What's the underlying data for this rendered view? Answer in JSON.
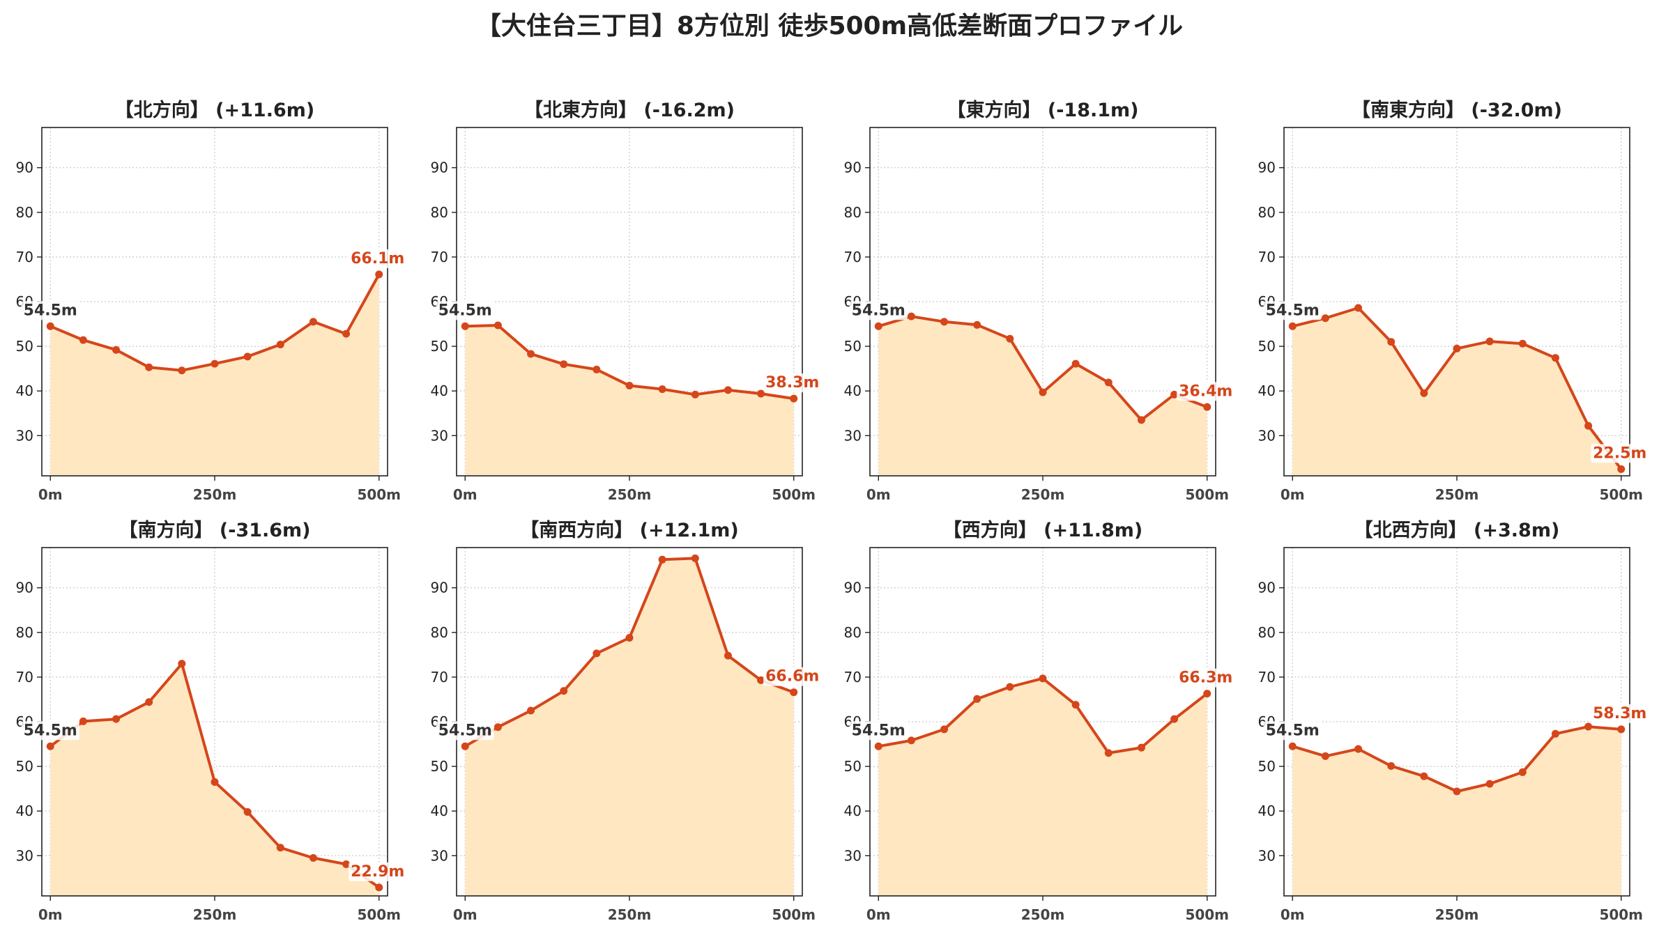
{
  "title": "【大住台三丁目】8方位別 徒歩500m高低差断面プロファイル",
  "colors": {
    "line": "#d5461a",
    "fill": "#ffe7c2",
    "end_label": "#d5461a",
    "start_label": "#333333",
    "grid": "#c8c8c8"
  },
  "chart_data": [
    {
      "type": "area",
      "title": "【北方向】 (+11.6m)",
      "x": [
        0,
        50,
        100,
        150,
        200,
        250,
        300,
        350,
        400,
        450,
        500
      ],
      "y": [
        54.5,
        51.4,
        49.2,
        45.3,
        44.6,
        46.1,
        47.7,
        50.4,
        55.5,
        52.8,
        66.1
      ],
      "start_label": "54.5m",
      "end_label": "66.1m",
      "xlim": [
        -13,
        513
      ],
      "ylim": [
        21,
        99
      ],
      "xticks": [
        0,
        250,
        500
      ],
      "xtick_labels": [
        "0m",
        "250m",
        "500m"
      ],
      "yticks": [
        30,
        40,
        50,
        60,
        70,
        80,
        90
      ],
      "ytick_labels": [
        "30",
        "40",
        "50",
        "60",
        "70",
        "80",
        "90"
      ],
      "grid": true
    },
    {
      "type": "area",
      "title": "【北東方向】 (-16.2m)",
      "x": [
        0,
        50,
        100,
        150,
        200,
        250,
        300,
        350,
        400,
        450,
        500
      ],
      "y": [
        54.5,
        54.7,
        48.3,
        46.0,
        44.8,
        41.2,
        40.4,
        39.2,
        40.2,
        39.4,
        38.3
      ],
      "start_label": "54.5m",
      "end_label": "38.3m",
      "xlim": [
        -13,
        513
      ],
      "ylim": [
        21,
        99
      ],
      "xticks": [
        0,
        250,
        500
      ],
      "xtick_labels": [
        "0m",
        "250m",
        "500m"
      ],
      "yticks": [
        30,
        40,
        50,
        60,
        70,
        80,
        90
      ],
      "ytick_labels": [
        "30",
        "40",
        "50",
        "60",
        "70",
        "80",
        "90"
      ],
      "grid": true
    },
    {
      "type": "area",
      "title": "【東方向】 (-18.1m)",
      "x": [
        0,
        50,
        100,
        150,
        200,
        250,
        300,
        350,
        400,
        450,
        500
      ],
      "y": [
        54.5,
        56.7,
        55.5,
        54.8,
        51.7,
        39.7,
        46.1,
        41.9,
        33.5,
        39.2,
        36.4
      ],
      "start_label": "54.5m",
      "end_label": "36.4m",
      "xlim": [
        -13,
        513
      ],
      "ylim": [
        21,
        99
      ],
      "xticks": [
        0,
        250,
        500
      ],
      "xtick_labels": [
        "0m",
        "250m",
        "500m"
      ],
      "yticks": [
        30,
        40,
        50,
        60,
        70,
        80,
        90
      ],
      "ytick_labels": [
        "30",
        "40",
        "50",
        "60",
        "70",
        "80",
        "90"
      ],
      "grid": true
    },
    {
      "type": "area",
      "title": "【南東方向】 (-32.0m)",
      "x": [
        0,
        50,
        100,
        150,
        200,
        250,
        300,
        350,
        400,
        450,
        500
      ],
      "y": [
        54.5,
        56.3,
        58.6,
        51.0,
        39.5,
        49.5,
        51.1,
        50.6,
        47.4,
        32.2,
        22.5
      ],
      "start_label": "54.5m",
      "end_label": "22.5m",
      "xlim": [
        -13,
        513
      ],
      "ylim": [
        21,
        99
      ],
      "xticks": [
        0,
        250,
        500
      ],
      "xtick_labels": [
        "0m",
        "250m",
        "500m"
      ],
      "yticks": [
        30,
        40,
        50,
        60,
        70,
        80,
        90
      ],
      "ytick_labels": [
        "30",
        "40",
        "50",
        "60",
        "70",
        "80",
        "90"
      ],
      "grid": true
    },
    {
      "type": "area",
      "title": "【南方向】 (-31.6m)",
      "x": [
        0,
        50,
        100,
        150,
        200,
        250,
        300,
        350,
        400,
        450,
        500
      ],
      "y": [
        54.5,
        60.1,
        60.6,
        64.4,
        73.0,
        46.5,
        39.8,
        31.8,
        29.5,
        28.1,
        22.9
      ],
      "start_label": "54.5m",
      "end_label": "22.9m",
      "xlim": [
        -13,
        513
      ],
      "ylim": [
        21,
        99
      ],
      "xticks": [
        0,
        250,
        500
      ],
      "xtick_labels": [
        "0m",
        "250m",
        "500m"
      ],
      "yticks": [
        30,
        40,
        50,
        60,
        70,
        80,
        90
      ],
      "ytick_labels": [
        "30",
        "40",
        "50",
        "60",
        "70",
        "80",
        "90"
      ],
      "grid": true
    },
    {
      "type": "area",
      "title": "【南西方向】 (+12.1m)",
      "x": [
        0,
        50,
        100,
        150,
        200,
        250,
        300,
        350,
        400,
        450,
        500
      ],
      "y": [
        54.5,
        58.8,
        62.5,
        66.9,
        75.3,
        78.8,
        96.3,
        96.6,
        74.8,
        69.3,
        66.6
      ],
      "start_label": "54.5m",
      "end_label": "66.6m",
      "xlim": [
        -13,
        513
      ],
      "ylim": [
        21,
        99
      ],
      "xticks": [
        0,
        250,
        500
      ],
      "xtick_labels": [
        "0m",
        "250m",
        "500m"
      ],
      "yticks": [
        30,
        40,
        50,
        60,
        70,
        80,
        90
      ],
      "ytick_labels": [
        "30",
        "40",
        "50",
        "60",
        "70",
        "80",
        "90"
      ],
      "grid": true
    },
    {
      "type": "area",
      "title": "【西方向】 (+11.8m)",
      "x": [
        0,
        50,
        100,
        150,
        200,
        250,
        300,
        350,
        400,
        450,
        500
      ],
      "y": [
        54.5,
        55.8,
        58.3,
        65.1,
        67.8,
        69.7,
        63.8,
        53.0,
        54.2,
        60.6,
        66.3
      ],
      "start_label": "54.5m",
      "end_label": "66.3m",
      "xlim": [
        -13,
        513
      ],
      "ylim": [
        21,
        99
      ],
      "xticks": [
        0,
        250,
        500
      ],
      "xtick_labels": [
        "0m",
        "250m",
        "500m"
      ],
      "yticks": [
        30,
        40,
        50,
        60,
        70,
        80,
        90
      ],
      "ytick_labels": [
        "30",
        "40",
        "50",
        "60",
        "70",
        "80",
        "90"
      ],
      "grid": true
    },
    {
      "type": "area",
      "title": "【北西方向】 (+3.8m)",
      "x": [
        0,
        50,
        100,
        150,
        200,
        250,
        300,
        350,
        400,
        450,
        500
      ],
      "y": [
        54.5,
        52.3,
        53.9,
        50.1,
        47.8,
        44.4,
        46.1,
        48.7,
        57.3,
        58.9,
        58.3
      ],
      "start_label": "54.5m",
      "end_label": "58.3m",
      "xlim": [
        -13,
        513
      ],
      "ylim": [
        21,
        99
      ],
      "xticks": [
        0,
        250,
        500
      ],
      "xtick_labels": [
        "0m",
        "250m",
        "500m"
      ],
      "yticks": [
        30,
        40,
        50,
        60,
        70,
        80,
        90
      ],
      "ytick_labels": [
        "30",
        "40",
        "50",
        "60",
        "70",
        "80",
        "90"
      ],
      "grid": true
    }
  ]
}
